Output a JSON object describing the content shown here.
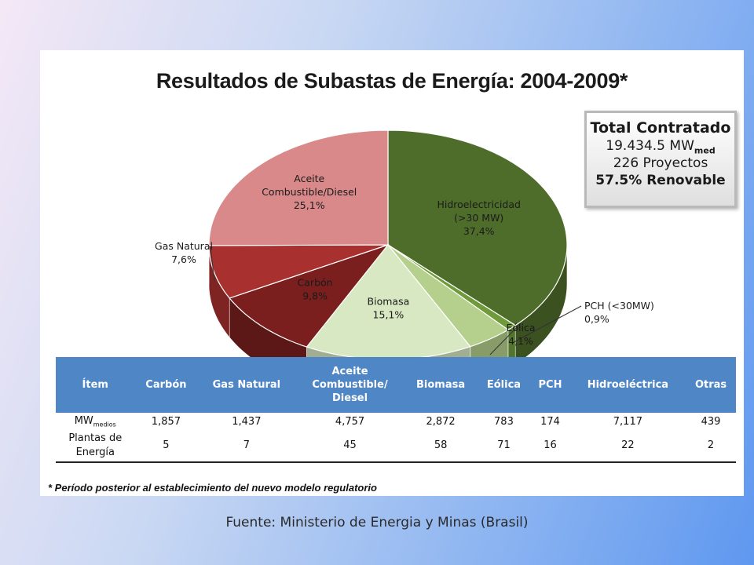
{
  "title": "Resultados de Subastas de Energía: 2004-2009*",
  "total_box": {
    "heading": "Total Contratado",
    "mw_value": "19.434.5 MW",
    "mw_sub": "med",
    "projects": "226 Proyectos",
    "renewable": "57.5% Renovable"
  },
  "chart_data": {
    "type": "pie",
    "title": "Resultados de Subastas de Energía: 2004-2009*",
    "slices": [
      {
        "label_lines": [
          "Hidroelectricidad",
          "(>30 MW)",
          "37,4%"
        ],
        "value": 37.4,
        "color": "#4e6c2a"
      },
      {
        "label_lines": [
          "PCH (<30MW)",
          "0,9%"
        ],
        "value": 0.9,
        "color": "#6f9a3a"
      },
      {
        "label_lines": [
          "Eólica",
          "4,1%"
        ],
        "value": 4.1,
        "color": "#b5d08c"
      },
      {
        "label_lines": [
          "Biomasa",
          "15,1%"
        ],
        "value": 15.1,
        "color": "#d8e8c2"
      },
      {
        "label_lines": [
          "Carbón",
          "9,8%"
        ],
        "value": 9.8,
        "color": "#7a1e1e"
      },
      {
        "label_lines": [
          "Gas Natural",
          "7,6%"
        ],
        "value": 7.6,
        "color": "#a8302f"
      },
      {
        "label_lines": [
          "Aceite",
          "Combustible/Diesel",
          "25,1%"
        ],
        "value": 25.1,
        "color": "#d9898a"
      }
    ]
  },
  "table": {
    "headers": [
      {
        "lines": [
          "Ítem"
        ]
      },
      {
        "lines": [
          "Carbón"
        ]
      },
      {
        "lines": [
          "Gas Natural"
        ]
      },
      {
        "lines": [
          "Aceite",
          "Combustible/",
          "Diesel"
        ]
      },
      {
        "lines": [
          "Biomasa"
        ]
      },
      {
        "lines": [
          "Eólica"
        ]
      },
      {
        "lines": [
          "PCH"
        ]
      },
      {
        "lines": [
          "Hidroeléctrica"
        ]
      },
      {
        "lines": [
          "Otras"
        ]
      }
    ],
    "row1_label": "MW",
    "row1_label_sub": "medios",
    "row1_values": [
      "1,857",
      "1,437",
      "4,757",
      "2,872",
      "783",
      "174",
      "7,117",
      "439"
    ],
    "row2_label": [
      "Plantas de",
      "Energía"
    ],
    "row2_values": [
      "5",
      "7",
      "45",
      "58",
      "71",
      "16",
      "22",
      "2"
    ]
  },
  "footnote": "* Período posterior al establecimiento del nuevo modelo regulatorio",
  "source": "Fuente: Ministerio de Energia y Minas (Brasil)"
}
